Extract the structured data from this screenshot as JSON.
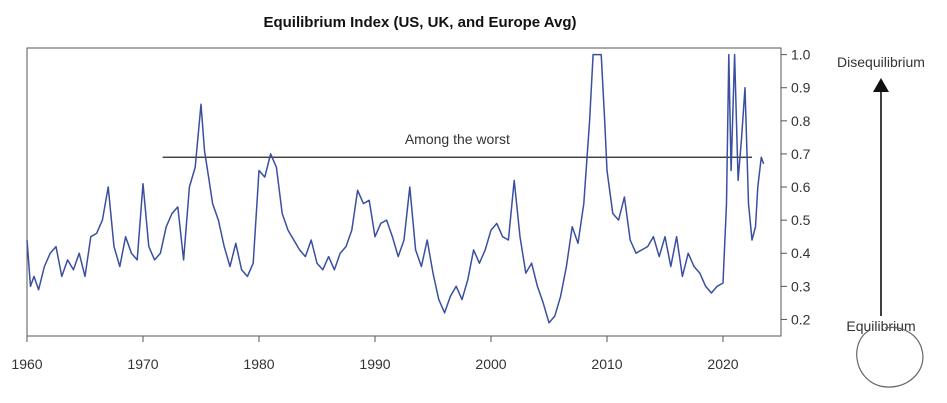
{
  "chart_data": {
    "type": "line",
    "title": "Equilibrium Index (US, UK, and Europe Avg)",
    "xlabel": "",
    "ylabel": "",
    "xlim": [
      1960,
      2025
    ],
    "ylim": [
      0.15,
      1.02
    ],
    "x_ticks": [
      1960,
      1970,
      1980,
      1990,
      2000,
      2010,
      2020
    ],
    "x_tick_labels": [
      "1960",
      "1970",
      "1980",
      "1990",
      "2000",
      "2010",
      "2020"
    ],
    "y_ticks": [
      0.2,
      0.3,
      0.4,
      0.5,
      0.6,
      0.7,
      0.8,
      0.9,
      1.0
    ],
    "y_tick_labels": [
      "0.2",
      "0.3",
      "0.4",
      "0.5",
      "0.6",
      "0.7",
      "0.8",
      "0.9",
      "1.0"
    ],
    "series": [
      {
        "name": "Equilibrium Index",
        "color": "#3a4fa0",
        "x": [
          1960.0,
          1960.3,
          1960.6,
          1961.0,
          1961.5,
          1962.0,
          1962.5,
          1963.0,
          1963.5,
          1964.0,
          1964.5,
          1965.0,
          1965.5,
          1966.0,
          1966.5,
          1967.0,
          1967.5,
          1968.0,
          1968.5,
          1969.0,
          1969.5,
          1970.0,
          1970.5,
          1971.0,
          1971.5,
          1972.0,
          1972.5,
          1973.0,
          1973.5,
          1974.0,
          1974.5,
          1975.0,
          1975.3,
          1975.7,
          1976.0,
          1976.5,
          1977.0,
          1977.5,
          1978.0,
          1978.5,
          1979.0,
          1979.5,
          1980.0,
          1980.5,
          1981.0,
          1981.5,
          1982.0,
          1982.5,
          1983.0,
          1983.5,
          1984.0,
          1984.5,
          1985.0,
          1985.5,
          1986.0,
          1986.5,
          1987.0,
          1987.5,
          1988.0,
          1988.5,
          1989.0,
          1989.5,
          1990.0,
          1990.5,
          1991.0,
          1991.5,
          1992.0,
          1992.5,
          1993.0,
          1993.5,
          1994.0,
          1994.5,
          1995.0,
          1995.5,
          1996.0,
          1996.5,
          1997.0,
          1997.5,
          1998.0,
          1998.5,
          1999.0,
          1999.5,
          2000.0,
          2000.5,
          2001.0,
          2001.5,
          2002.0,
          2002.5,
          2003.0,
          2003.5,
          2004.0,
          2004.5,
          2005.0,
          2005.5,
          2006.0,
          2006.5,
          2007.0,
          2007.5,
          2008.0,
          2008.5,
          2008.8,
          2009.0,
          2009.5,
          2009.8,
          2010.0,
          2010.5,
          2011.0,
          2011.5,
          2012.0,
          2012.5,
          2013.0,
          2013.5,
          2014.0,
          2014.5,
          2015.0,
          2015.5,
          2016.0,
          2016.5,
          2017.0,
          2017.5,
          2018.0,
          2018.5,
          2019.0,
          2019.5,
          2020.0,
          2020.3,
          2020.5,
          2020.7,
          2021.0,
          2021.3,
          2021.6,
          2021.9,
          2022.2,
          2022.5,
          2022.8,
          2023.0,
          2023.3,
          2023.5
        ],
        "values": [
          0.44,
          0.3,
          0.33,
          0.29,
          0.36,
          0.4,
          0.42,
          0.33,
          0.38,
          0.35,
          0.4,
          0.33,
          0.45,
          0.46,
          0.5,
          0.6,
          0.42,
          0.36,
          0.45,
          0.4,
          0.38,
          0.61,
          0.42,
          0.38,
          0.4,
          0.48,
          0.52,
          0.54,
          0.38,
          0.6,
          0.66,
          0.85,
          0.71,
          0.62,
          0.55,
          0.5,
          0.42,
          0.36,
          0.43,
          0.35,
          0.33,
          0.37,
          0.65,
          0.63,
          0.7,
          0.66,
          0.52,
          0.47,
          0.44,
          0.41,
          0.39,
          0.44,
          0.37,
          0.35,
          0.39,
          0.35,
          0.4,
          0.42,
          0.47,
          0.59,
          0.55,
          0.56,
          0.45,
          0.49,
          0.5,
          0.45,
          0.39,
          0.44,
          0.6,
          0.41,
          0.36,
          0.44,
          0.34,
          0.26,
          0.22,
          0.27,
          0.3,
          0.26,
          0.32,
          0.41,
          0.37,
          0.41,
          0.47,
          0.49,
          0.45,
          0.44,
          0.62,
          0.45,
          0.34,
          0.37,
          0.3,
          0.25,
          0.19,
          0.21,
          0.27,
          0.36,
          0.48,
          0.43,
          0.55,
          0.8,
          1.0,
          1.0,
          1.0,
          0.8,
          0.65,
          0.52,
          0.5,
          0.57,
          0.44,
          0.4,
          0.41,
          0.42,
          0.45,
          0.39,
          0.45,
          0.36,
          0.45,
          0.33,
          0.4,
          0.36,
          0.34,
          0.3,
          0.28,
          0.3,
          0.31,
          0.55,
          1.0,
          0.65,
          1.0,
          0.62,
          0.75,
          0.9,
          0.55,
          0.44,
          0.48,
          0.6,
          0.69,
          0.67
        ]
      }
    ],
    "reference_line": {
      "y": 0.69,
      "x_start": 1971.7,
      "x_end": 2022.5,
      "label": "Among the worst"
    },
    "scale_labels": {
      "top": "Disequilibrium",
      "bottom": "Equilibrium"
    }
  }
}
